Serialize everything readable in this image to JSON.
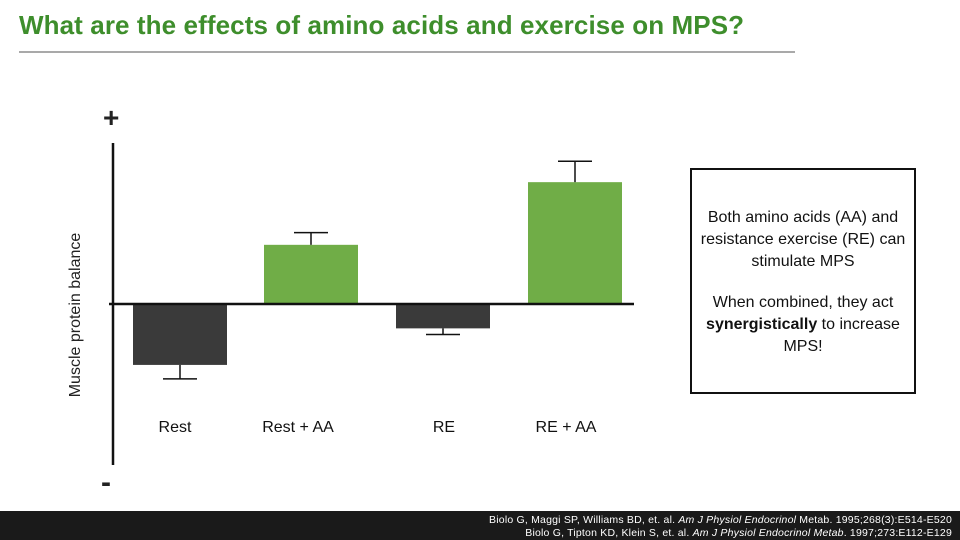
{
  "title": "What are the effects of amino acids and exercise on MPS?",
  "info_box": {
    "para1": "Both amino acids (AA) and resistance exercise (RE) can stimulate MPS",
    "para2_before": "When combined, they act ",
    "para2_bold": "synergistically",
    "para2_after": " to increase MPS!"
  },
  "references": {
    "ref1": {
      "before": "Biolo G, Maggi SP, Williams BD, et. al. ",
      "journal": "Am J Physiol Endocrinol",
      "after": " Metab. 1995;268(3):E514-E520"
    },
    "ref2": {
      "before": "Biolo G, Tipton KD, Klein S, et. al. ",
      "journal": "Am J Physiol Endocrinol Metab",
      "after": ". 1997;273:E112-E129"
    }
  },
  "colors": {
    "title": "#3e8e2c",
    "positive_bar": "#70ad47",
    "negative_bar": "#3a3a3a",
    "axis": "#111111",
    "footer_bg": "#1a1a1a"
  },
  "chart_data": {
    "type": "bar",
    "ylabel": "Muscle protein balance",
    "y_top_label": "+",
    "y_bottom_label": "-",
    "categories": [
      "Rest",
      "Rest + AA",
      "RE",
      "RE + AA"
    ],
    "values": [
      -70,
      68,
      -28,
      140
    ],
    "errors": [
      16,
      14,
      7,
      24
    ],
    "ylim": [
      -185,
      185
    ],
    "grid": false,
    "legend": "none"
  }
}
